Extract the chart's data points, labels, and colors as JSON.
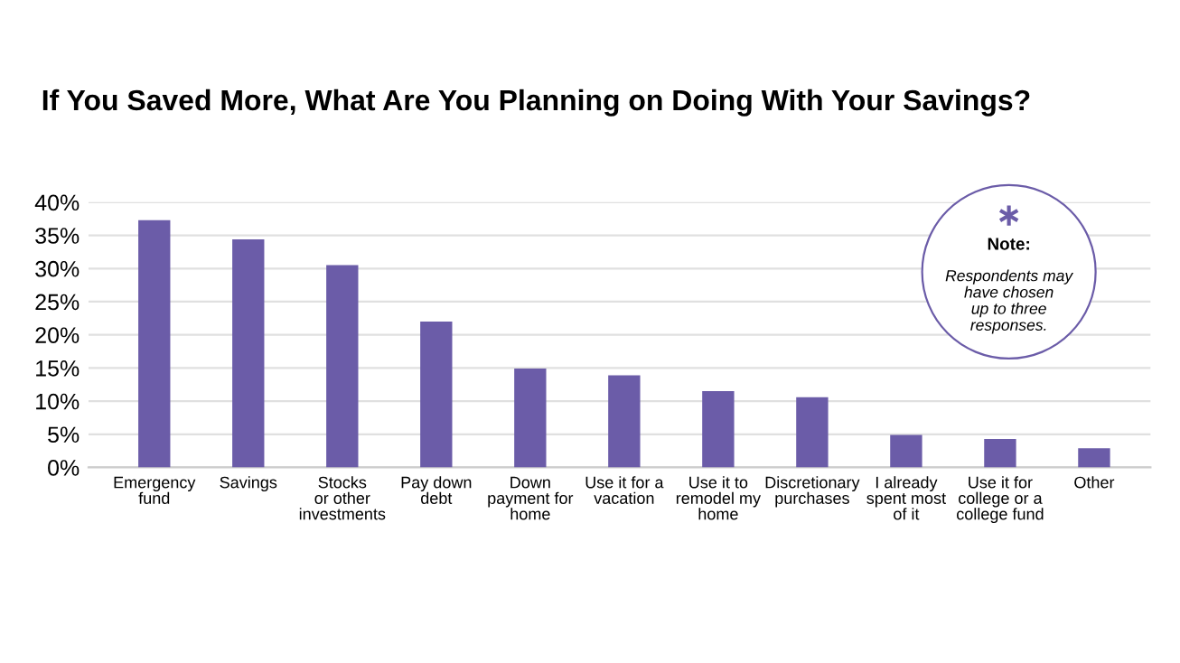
{
  "chart_data": {
    "type": "bar",
    "title": "If You Saved More, What Are You Planning on Doing With Your Savings?",
    "categories": [
      "Emergency\nfund",
      "Savings",
      "Stocks\nor other\ninvestments",
      "Pay down\ndebt",
      "Down\npayment for\nhome",
      "Use it for a\nvacation",
      "Use it to\nremodel my\nhome",
      "Discretionary\npurchases",
      "I already\nspent most\nof it",
      "Use it for\ncollege or a\ncollege fund",
      "Other"
    ],
    "values": [
      37.3,
      34.4,
      30.5,
      22.0,
      14.9,
      13.9,
      11.5,
      10.6,
      4.9,
      4.3,
      2.9
    ],
    "color": "#6b5ca8",
    "ylim": [
      0,
      40
    ],
    "yticks": [
      {
        "value": 0,
        "label": "0%"
      },
      {
        "value": 5,
        "label": "5%"
      },
      {
        "value": 10,
        "label": "10%"
      },
      {
        "value": 15,
        "label": "15%"
      },
      {
        "value": 20,
        "label": "20%"
      },
      {
        "value": 25,
        "label": "25%"
      },
      {
        "value": 30,
        "label": "30%"
      },
      {
        "value": 35,
        "label": "35%"
      },
      {
        "value": 40,
        "label": "40%"
      }
    ],
    "grid": "y",
    "annotations": [
      "Note:",
      "Respondents may\nhave chosen\nup to three\nresponses."
    ]
  }
}
